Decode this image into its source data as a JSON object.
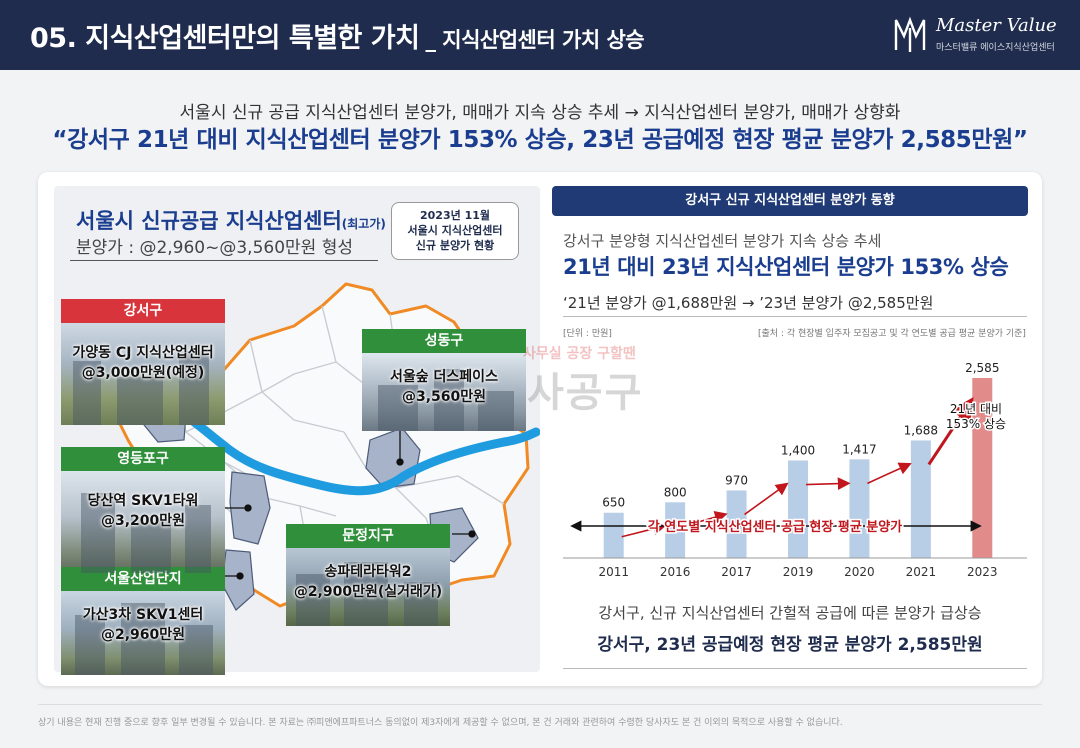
{
  "header": {
    "title": "05. 지식산업센터만의 특별한 가치",
    "subtitle": "_ 지식산업센터 가치 상승",
    "logo_text": "Master Value",
    "logo_sub": "마스터밸류 에이스지식산업센터"
  },
  "intro": {
    "line1": "서울시 신규 공급 지식산업센터 분양가, 매매가 지속 상승 추세 → 지식산업센터 분양가, 매매가 상향화",
    "line2": "“강서구 21년 대비 지식산업센터 분양가 153% 상승, 23년 공급예정 현장 평균 분양가 2,585만원”"
  },
  "left": {
    "heading": "서울시 신규공급 지식산업센터",
    "heading_small": "(최고가)",
    "subheading": "분양가 : @2,960~@3,560만원 형성",
    "date_box": [
      "2023년 11월",
      "서울시 지식산업센터",
      "신규 분양가 현황"
    ],
    "locations": [
      {
        "label": "강서구",
        "line1": "가양동 CJ 지식산업센터",
        "line2": "@3,000만원(예정)",
        "color": "#d8343b"
      },
      {
        "label": "영등포구",
        "line1": "당산역 SKV1타워",
        "line2": "@3,200만원",
        "color": "#2f8f3a"
      },
      {
        "label": "서울산업단지",
        "line1": "가산3차 SKV1센터",
        "line2": "@2,960만원",
        "color": "#2f8f3a"
      },
      {
        "label": "성동구",
        "line1": "서울숲 더스페이스",
        "line2": "@3,560만원",
        "color": "#2f8f3a"
      },
      {
        "label": "문정지구",
        "line1": "송파테라타워2",
        "line2": "@2,900만원(실거래가)",
        "color": "#2f8f3a"
      }
    ]
  },
  "right": {
    "bar_title": "강서구 신규 지식산업센터 분양가 동향",
    "line1": "강서구 분양형 지식산업센터 분양가 지속 상승 추세",
    "line2": "21년 대비 23년 지식산업센터 분양가 153% 상승",
    "line3": "‘21년 분양가 @1,688만원 → ’23년 분양가 @2,585만원",
    "unit": "[단위 : 만원]",
    "source": "[출처 : 각 현장별 입주자 모집공고 및 각 연도별 공급 평균 분양가 기준]",
    "bottom1": "강서구, 신규 지식산업센터 간헐적 공급에 따른 분양가 급상승",
    "bottom2": "강서구, 23년 공급예정 현장 평균 분양가 2,585만원"
  },
  "watermark": {
    "small": "사무실 공장 구할땐",
    "big": "사공구"
  },
  "chart_data": {
    "type": "bar",
    "categories": [
      "2011",
      "2016",
      "2017",
      "2019",
      "2020",
      "2021",
      "2023"
    ],
    "values": [
      650,
      800,
      970,
      1400,
      1417,
      1688,
      2585
    ],
    "value_labels": [
      "650",
      "800",
      "970",
      "1,400",
      "1,417",
      "1,688",
      "2,585"
    ],
    "ylim": [
      0,
      2700
    ],
    "bar_color": "#b8cde6",
    "highlight_color": "#e28b8b",
    "highlight_index": 6,
    "annotation": [
      "21년 대비",
      "153% 상승"
    ],
    "band_label": "각 연도별 지식산업센터 공급 현장 평균 분양가"
  },
  "footer": "상기 내용은 현재 진행 중으로 향후 일부 변경될 수 있습니다. 본 자료는 ㈜피앤에프파트너스 동의없이 제3자에게 제공할 수 없으며, 본 건 거래와 관련하여 수령한 당사자도 본 건 이외의 목적으로 사용할 수 없습니다."
}
